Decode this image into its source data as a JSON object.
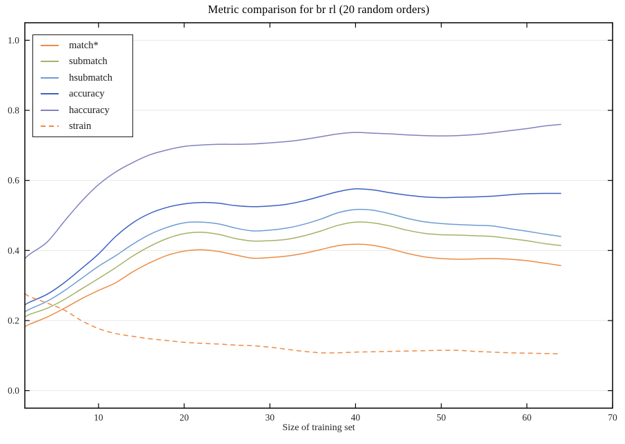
{
  "chart_data": {
    "type": "line",
    "title": "Metric comparison for br rl (20 random orders)",
    "xlabel": "Size of training set",
    "ylabel": "",
    "xlim": [
      1.4,
      70
    ],
    "ylim": [
      -0.05,
      1.05
    ],
    "xticks": [
      10,
      20,
      30,
      40,
      50,
      60,
      70
    ],
    "yticks": [
      0.0,
      0.2,
      0.4,
      0.6,
      0.8,
      1.0
    ],
    "ytick_labels": [
      "0.0",
      "0.2",
      "0.4",
      "0.6",
      "0.8",
      "1.0"
    ],
    "grid": "horizontal-only",
    "legend_position": "upper-left",
    "x": [
      1.4,
      2,
      4,
      6,
      8,
      10,
      12,
      14,
      16,
      18,
      20,
      22,
      24,
      26,
      28,
      30,
      32,
      34,
      36,
      38,
      40,
      42,
      44,
      46,
      48,
      50,
      52,
      54,
      56,
      58,
      60,
      62,
      64
    ],
    "series": [
      {
        "name": "match*",
        "color": "#ee8a44",
        "dash": false,
        "values": [
          0.182,
          0.19,
          0.21,
          0.235,
          0.262,
          0.286,
          0.308,
          0.339,
          0.365,
          0.386,
          0.398,
          0.402,
          0.397,
          0.387,
          0.378,
          0.38,
          0.384,
          0.392,
          0.403,
          0.414,
          0.418,
          0.415,
          0.405,
          0.392,
          0.382,
          0.377,
          0.375,
          0.376,
          0.377,
          0.375,
          0.371,
          0.364,
          0.357
        ]
      },
      {
        "name": "submatch",
        "color": "#a3b266",
        "dash": false,
        "values": [
          0.21,
          0.218,
          0.235,
          0.26,
          0.29,
          0.32,
          0.351,
          0.384,
          0.412,
          0.434,
          0.448,
          0.452,
          0.446,
          0.434,
          0.427,
          0.428,
          0.432,
          0.442,
          0.456,
          0.472,
          0.481,
          0.479,
          0.47,
          0.458,
          0.449,
          0.445,
          0.444,
          0.442,
          0.44,
          0.434,
          0.428,
          0.42,
          0.414
        ]
      },
      {
        "name": "hsubmatch",
        "color": "#6d9bd3",
        "dash": false,
        "values": [
          0.225,
          0.233,
          0.255,
          0.285,
          0.32,
          0.355,
          0.385,
          0.418,
          0.446,
          0.466,
          0.479,
          0.481,
          0.476,
          0.464,
          0.456,
          0.458,
          0.464,
          0.475,
          0.49,
          0.508,
          0.517,
          0.515,
          0.505,
          0.492,
          0.482,
          0.477,
          0.474,
          0.472,
          0.47,
          0.462,
          0.455,
          0.447,
          0.44
        ]
      },
      {
        "name": "accuracy",
        "color": "#3a60c2",
        "dash": false,
        "values": [
          0.245,
          0.253,
          0.275,
          0.308,
          0.348,
          0.39,
          0.44,
          0.479,
          0.506,
          0.523,
          0.533,
          0.537,
          0.535,
          0.528,
          0.525,
          0.527,
          0.532,
          0.542,
          0.555,
          0.568,
          0.576,
          0.573,
          0.565,
          0.558,
          0.553,
          0.551,
          0.552,
          0.553,
          0.555,
          0.559,
          0.562,
          0.563,
          0.563
        ]
      },
      {
        "name": "haccuracy",
        "color": "#8080bf",
        "dash": false,
        "values": [
          0.377,
          0.39,
          0.424,
          0.483,
          0.54,
          0.588,
          0.624,
          0.651,
          0.673,
          0.687,
          0.697,
          0.701,
          0.703,
          0.703,
          0.704,
          0.707,
          0.711,
          0.717,
          0.725,
          0.733,
          0.737,
          0.735,
          0.733,
          0.73,
          0.728,
          0.727,
          0.728,
          0.731,
          0.736,
          0.742,
          0.748,
          0.755,
          0.76
        ]
      },
      {
        "name": "strain",
        "color": "#ee8a44",
        "dash": true,
        "values": [
          0.277,
          0.268,
          0.25,
          0.23,
          0.2,
          0.177,
          0.163,
          0.155,
          0.148,
          0.143,
          0.138,
          0.135,
          0.133,
          0.13,
          0.128,
          0.124,
          0.118,
          0.112,
          0.108,
          0.108,
          0.11,
          0.111,
          0.112,
          0.113,
          0.114,
          0.115,
          0.115,
          0.112,
          0.11,
          0.108,
          0.107,
          0.106,
          0.105
        ]
      }
    ],
    "colors": {
      "grid": "#e7e7e7",
      "spine": "#000000",
      "tick_text": "#262626"
    }
  }
}
